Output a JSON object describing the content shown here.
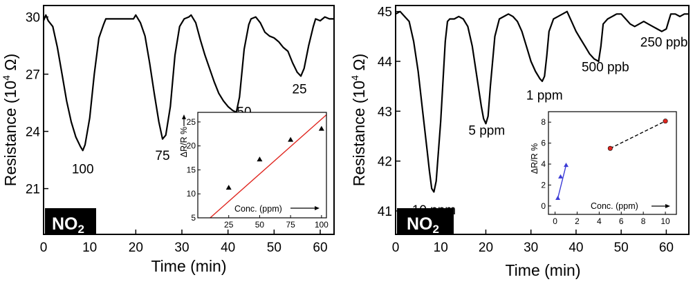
{
  "chart_data": [
    {
      "type": "line",
      "panel": "left",
      "xlabel": "Time (min)",
      "ylabel_main": "Resistance (10",
      "ylabel_exp": "4",
      "ylabel_unit": " Ω)",
      "xlim": [
        0,
        63
      ],
      "ylim": [
        18.6,
        30.6
      ],
      "xticks": [
        0,
        10,
        20,
        30,
        40,
        50,
        60
      ],
      "yticks": [
        21,
        24,
        27,
        30
      ],
      "gas_label_main": "NO",
      "gas_label_sub": "2",
      "series": [
        {
          "x": [
            0,
            0.5,
            1,
            2,
            3,
            4,
            5,
            6,
            7,
            8,
            8.5,
            9,
            10,
            11,
            12,
            13,
            13.5,
            14,
            16,
            18,
            19.5,
            20,
            21,
            22,
            23,
            24,
            25,
            25.8,
            26.5,
            27.5,
            28.5,
            29.5,
            30.5,
            31.5,
            32,
            33,
            34,
            35,
            36,
            37,
            38,
            39,
            40,
            41,
            41.8,
            42.5,
            43.5,
            44.5,
            45,
            46,
            47,
            48,
            49,
            50,
            51,
            52,
            53,
            54,
            55,
            55.8,
            56.5,
            57.5,
            58.5,
            59,
            60,
            61,
            62,
            63
          ],
          "y": [
            29.8,
            30.1,
            29.8,
            29.5,
            28.4,
            27.0,
            25.6,
            24.5,
            23.7,
            23.2,
            23.0,
            23.3,
            24.7,
            27.0,
            28.9,
            29.6,
            29.9,
            29.9,
            29.9,
            29.9,
            29.9,
            30.1,
            29.7,
            29.0,
            27.6,
            26.0,
            24.5,
            23.6,
            23.8,
            25.3,
            28.0,
            29.5,
            29.9,
            30.0,
            30.1,
            29.7,
            28.8,
            28.0,
            27.3,
            26.6,
            26.0,
            25.6,
            25.3,
            25.1,
            25.0,
            25.8,
            28.3,
            29.6,
            29.9,
            30.0,
            29.7,
            29.2,
            29.0,
            28.9,
            28.7,
            28.4,
            28.2,
            27.6,
            27.1,
            26.9,
            27.3,
            28.5,
            29.5,
            29.9,
            29.8,
            30.0,
            29.9,
            29.9
          ]
        }
      ],
      "annotations": [
        {
          "text": "100",
          "x": 8.5,
          "y": 21.8
        },
        {
          "text": "75",
          "x": 25.8,
          "y": 22.5
        },
        {
          "text": "50",
          "x": 43.5,
          "y": 24.8
        },
        {
          "text": "25",
          "x": 55.5,
          "y": 26.0
        }
      ],
      "inset": {
        "type": "scatter",
        "xlabel": "Conc. (ppm)",
        "ylabel": "ΔR/R %",
        "xlim": [
          0,
          104
        ],
        "ylim": [
          5,
          27
        ],
        "xticks": [
          25,
          50,
          75,
          100
        ],
        "yticks": [
          5,
          10,
          15,
          20,
          25
        ],
        "points": {
          "x": [
            25,
            50,
            75,
            100
          ],
          "y": [
            11.3,
            17.2,
            21.3,
            23.6
          ]
        },
        "fit_line": {
          "x": [
            10,
            104
          ],
          "y": [
            5,
            26.5
          ],
          "color": "#e0261f"
        },
        "marker_color": "#000000"
      }
    },
    {
      "type": "line",
      "panel": "right",
      "xlabel": "Time (min)",
      "ylabel_main": "Resistance (10",
      "ylabel_exp": "4",
      "ylabel_unit": " Ω)",
      "xlim": [
        0,
        65
      ],
      "ylim": [
        40.53,
        45.12
      ],
      "xticks": [
        0,
        10,
        20,
        30,
        40,
        50,
        60
      ],
      "yticks": [
        41,
        42,
        43,
        44,
        45
      ],
      "gas_label_main": "NO",
      "gas_label_sub": "2",
      "series": [
        {
          "x": [
            0,
            1,
            2,
            3,
            4,
            5,
            6,
            7,
            7.5,
            8,
            8.5,
            9,
            10,
            11,
            11.5,
            12,
            13,
            14,
            15,
            16,
            17,
            18,
            19,
            19.5,
            20,
            20.5,
            21,
            22,
            23,
            24,
            25,
            26,
            27,
            28,
            29,
            30,
            31,
            32,
            32.5,
            33,
            33.5,
            34,
            35,
            36,
            37,
            38,
            39,
            40,
            41,
            42,
            43,
            44,
            45,
            45.5,
            46,
            47,
            48,
            49,
            50,
            51,
            52,
            53,
            54,
            55,
            56,
            57,
            58,
            59,
            60,
            60.5,
            61,
            62,
            63,
            64,
            65
          ],
          "y": [
            44.95,
            45.0,
            44.9,
            44.8,
            44.4,
            43.8,
            43.0,
            42.2,
            41.8,
            41.45,
            41.38,
            41.6,
            42.8,
            44.4,
            44.8,
            44.85,
            44.85,
            44.9,
            44.85,
            44.7,
            44.3,
            43.7,
            43.1,
            42.85,
            42.75,
            42.9,
            43.5,
            44.5,
            44.85,
            44.9,
            44.95,
            44.9,
            44.8,
            44.6,
            44.3,
            44.0,
            43.8,
            43.65,
            43.6,
            43.7,
            44.1,
            44.6,
            44.85,
            44.9,
            44.95,
            45.0,
            44.8,
            44.6,
            44.45,
            44.3,
            44.15,
            44.05,
            44.0,
            44.3,
            44.75,
            44.85,
            44.9,
            44.95,
            44.95,
            44.85,
            44.75,
            44.7,
            44.75,
            44.8,
            44.75,
            44.7,
            44.65,
            44.6,
            44.65,
            44.8,
            44.95,
            44.95,
            44.9,
            44.95,
            44.95
          ]
        }
      ],
      "annotations": [
        {
          "text": "10 ppm",
          "x": 8.5,
          "y": 40.93
        },
        {
          "text": "5 ppm",
          "x": 20.2,
          "y": 42.53
        },
        {
          "text": "1 ppm",
          "x": 33.0,
          "y": 43.23
        },
        {
          "text": "500 ppb",
          "x": 46.5,
          "y": 43.8
        },
        {
          "text": "250 ppb",
          "x": 59.5,
          "y": 44.3
        }
      ],
      "inset": {
        "type": "scatter",
        "xlabel": "Conc. (ppm)",
        "ylabel": "ΔR/R %",
        "xlim": [
          -0.6,
          11
        ],
        "ylim": [
          -0.8,
          9.0
        ],
        "xticks": [
          0,
          2,
          4,
          6,
          8,
          10
        ],
        "yticks": [
          0,
          2,
          4,
          6,
          8
        ],
        "low_series": {
          "x": [
            0.25,
            0.5,
            1.0
          ],
          "y": [
            0.75,
            2.8,
            3.9
          ],
          "color": "#3b3bd6"
        },
        "high_series": {
          "x": [
            5,
            10
          ],
          "y": [
            5.5,
            8.1
          ],
          "color": "#e0261f"
        }
      }
    }
  ]
}
